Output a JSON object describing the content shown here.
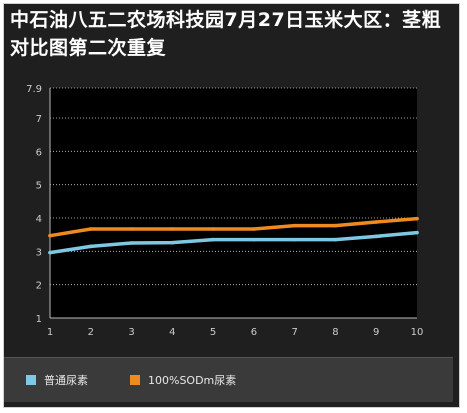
{
  "chart_data": {
    "type": "line",
    "title": "中石油八五二农场科技园7月27日玉米大区：茎粗对比图第二次重复",
    "x": [
      1,
      2,
      3,
      4,
      5,
      6,
      7,
      8,
      9,
      10
    ],
    "ylim": [
      1,
      7.9
    ],
    "yticks": [
      "1",
      "2",
      "3",
      "4",
      "5",
      "6",
      "7",
      "7.9"
    ],
    "series": [
      {
        "name": "普通尿素",
        "color": "#7ec8e3",
        "values": [
          2.96,
          3.15,
          3.25,
          3.26,
          3.35,
          3.35,
          3.35,
          3.35,
          3.45,
          3.56
        ]
      },
      {
        "name": "100%SODm尿素",
        "color": "#ee8a1e",
        "values": [
          3.47,
          3.67,
          3.67,
          3.67,
          3.67,
          3.67,
          3.77,
          3.77,
          3.88,
          3.98
        ]
      }
    ],
    "grid": true,
    "legend": "bottom"
  }
}
